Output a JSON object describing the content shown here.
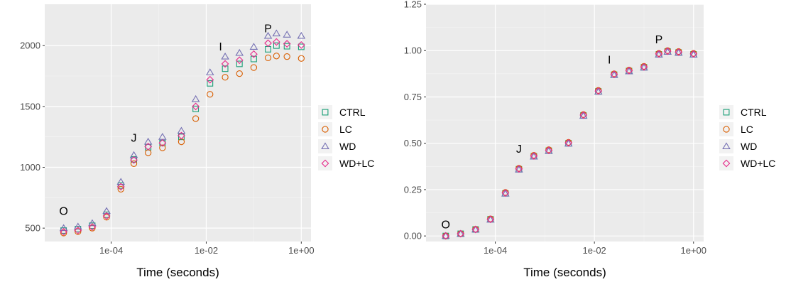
{
  "chart_data": [
    {
      "type": "scatter",
      "xlabel": "Time (seconds)",
      "ylabel": "",
      "x_scale": "log10",
      "xlim": [
        4e-06,
        1.6
      ],
      "ylim": [
        390,
        2340
      ],
      "x_ticks": [
        0.0001,
        0.01,
        1
      ],
      "x_tick_labels": [
        "1e-04",
        "1e-02",
        "1e+00"
      ],
      "y_ticks": [
        500,
        1000,
        1500,
        2000
      ],
      "y_tick_labels": [
        "500",
        "1000",
        "1500",
        "2000"
      ],
      "grid": true,
      "legend_position": "right",
      "annotations": [
        {
          "text": "O",
          "x": 1e-05,
          "y": 610
        },
        {
          "text": "J",
          "x": 0.0003,
          "y": 1210
        },
        {
          "text": "I",
          "x": 0.02,
          "y": 1960
        },
        {
          "text": "P",
          "x": 0.2,
          "y": 2110
        }
      ],
      "series": [
        {
          "name": "CTRL",
          "marker": "square",
          "color": "#1b9e77",
          "x": [
            1e-05,
            2e-05,
            4e-05,
            8e-05,
            0.00016,
            0.0003,
            0.0006,
            0.0012,
            0.003,
            0.006,
            0.012,
            0.025,
            0.05,
            0.1,
            0.2,
            0.3,
            0.5,
            1.0
          ],
          "y": [
            480,
            492,
            520,
            610,
            850,
            1065,
            1165,
            1200,
            1250,
            1480,
            1690,
            1810,
            1850,
            1890,
            1970,
            2000,
            1995,
            1990
          ]
        },
        {
          "name": "LC",
          "marker": "circle",
          "color": "#d95f02",
          "x": [
            1e-05,
            2e-05,
            4e-05,
            8e-05,
            0.00016,
            0.0003,
            0.0006,
            0.0012,
            0.003,
            0.006,
            0.012,
            0.025,
            0.05,
            0.1,
            0.2,
            0.3,
            0.5,
            1.0
          ],
          "y": [
            460,
            472,
            500,
            590,
            820,
            1030,
            1120,
            1160,
            1210,
            1400,
            1600,
            1740,
            1770,
            1820,
            1900,
            1915,
            1910,
            1895
          ]
        },
        {
          "name": "WD",
          "marker": "triangle",
          "color": "#7570b3",
          "x": [
            1e-05,
            2e-05,
            4e-05,
            8e-05,
            0.00016,
            0.0003,
            0.0006,
            0.0012,
            0.003,
            0.006,
            0.012,
            0.025,
            0.05,
            0.1,
            0.2,
            0.3,
            0.5,
            1.0
          ],
          "y": [
            500,
            512,
            540,
            640,
            880,
            1100,
            1210,
            1250,
            1300,
            1560,
            1780,
            1910,
            1940,
            1990,
            2080,
            2100,
            2090,
            2080
          ]
        },
        {
          "name": "WD+LC",
          "marker": "diamond",
          "color": "#e7298a",
          "x": [
            1e-05,
            2e-05,
            4e-05,
            8e-05,
            0.00016,
            0.0003,
            0.0006,
            0.0012,
            0.003,
            0.006,
            0.012,
            0.025,
            0.05,
            0.1,
            0.2,
            0.3,
            0.5,
            1.0
          ],
          "y": [
            470,
            482,
            510,
            600,
            840,
            1060,
            1170,
            1200,
            1260,
            1500,
            1720,
            1850,
            1880,
            1930,
            2020,
            2030,
            2015,
            2005
          ]
        }
      ]
    },
    {
      "type": "scatter",
      "xlabel": "Time (seconds)",
      "ylabel": "",
      "x_scale": "log10",
      "xlim": [
        4e-06,
        1.6
      ],
      "ylim": [
        -0.03,
        1.25
      ],
      "x_ticks": [
        0.0001,
        0.01,
        1
      ],
      "x_tick_labels": [
        "1e-04",
        "1e-02",
        "1e+00"
      ],
      "y_ticks": [
        0,
        0.25,
        0.5,
        0.75,
        1.0,
        1.25
      ],
      "y_tick_labels": [
        "0.00",
        "0.25",
        "0.50",
        "0.75",
        "1.00",
        "1.25"
      ],
      "grid": true,
      "legend_position": "right",
      "annotations": [
        {
          "text": "O",
          "x": 1e-05,
          "y": 0.04
        },
        {
          "text": "J",
          "x": 0.0003,
          "y": 0.45
        },
        {
          "text": "I",
          "x": 0.02,
          "y": 0.93
        },
        {
          "text": "P",
          "x": 0.2,
          "y": 1.04
        }
      ],
      "series": [
        {
          "name": "CTRL",
          "marker": "square",
          "color": "#1b9e77",
          "x": [
            1e-05,
            2e-05,
            4e-05,
            8e-05,
            0.00016,
            0.0003,
            0.0006,
            0.0012,
            0.003,
            0.006,
            0.012,
            0.025,
            0.05,
            0.1,
            0.2,
            0.3,
            0.5,
            1.0
          ],
          "y": [
            0.0,
            0.012,
            0.035,
            0.09,
            0.23,
            0.36,
            0.43,
            0.46,
            0.5,
            0.65,
            0.78,
            0.87,
            0.89,
            0.91,
            0.98,
            0.995,
            0.99,
            0.98
          ]
        },
        {
          "name": "LC",
          "marker": "circle",
          "color": "#d95f02",
          "x": [
            1e-05,
            2e-05,
            4e-05,
            8e-05,
            0.00016,
            0.0003,
            0.0006,
            0.0012,
            0.003,
            0.006,
            0.012,
            0.025,
            0.05,
            0.1,
            0.2,
            0.3,
            0.5,
            1.0
          ],
          "y": [
            0.0,
            0.012,
            0.036,
            0.092,
            0.235,
            0.365,
            0.435,
            0.465,
            0.505,
            0.655,
            0.785,
            0.875,
            0.895,
            0.915,
            0.985,
            1.0,
            0.995,
            0.985
          ]
        },
        {
          "name": "WD",
          "marker": "triangle",
          "color": "#7570b3",
          "x": [
            1e-05,
            2e-05,
            4e-05,
            8e-05,
            0.00016,
            0.0003,
            0.0006,
            0.0012,
            0.003,
            0.006,
            0.012,
            0.025,
            0.05,
            0.1,
            0.2,
            0.3,
            0.5,
            1.0
          ],
          "y": [
            0.0,
            0.011,
            0.034,
            0.088,
            0.228,
            0.358,
            0.428,
            0.458,
            0.498,
            0.648,
            0.778,
            0.868,
            0.888,
            0.908,
            0.978,
            0.993,
            0.988,
            0.978
          ]
        },
        {
          "name": "WD+LC",
          "marker": "diamond",
          "color": "#e7298a",
          "x": [
            1e-05,
            2e-05,
            4e-05,
            8e-05,
            0.00016,
            0.0003,
            0.0006,
            0.0012,
            0.003,
            0.006,
            0.012,
            0.025,
            0.05,
            0.1,
            0.2,
            0.3,
            0.5,
            1.0
          ],
          "y": [
            0.0,
            0.012,
            0.035,
            0.09,
            0.232,
            0.362,
            0.432,
            0.462,
            0.502,
            0.652,
            0.782,
            0.872,
            0.892,
            0.912,
            0.982,
            0.997,
            0.992,
            0.982
          ]
        }
      ]
    }
  ]
}
